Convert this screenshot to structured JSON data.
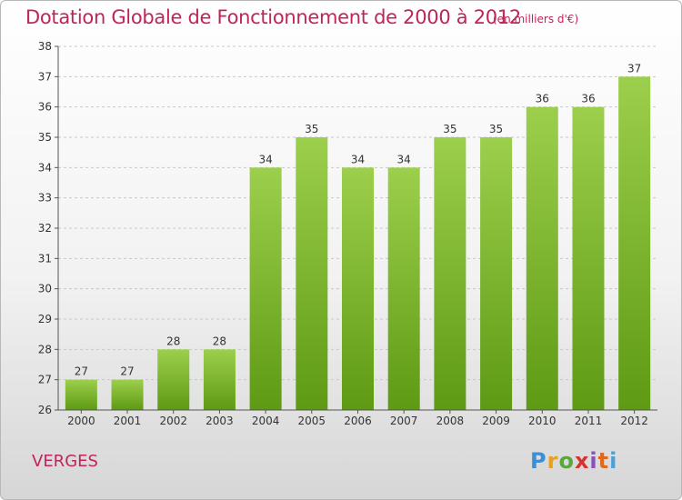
{
  "chart_data": {
    "type": "bar",
    "title": "Dotation Globale de Fonctionnement de 2000 à 2012",
    "unit_label": "(en milliers d'€)",
    "categories": [
      "2000",
      "2001",
      "2002",
      "2003",
      "2004",
      "2005",
      "2006",
      "2007",
      "2008",
      "2009",
      "2010",
      "2011",
      "2012"
    ],
    "values": [
      27,
      27,
      28,
      28,
      34,
      35,
      34,
      34,
      35,
      35,
      36,
      36,
      37
    ],
    "ylim": [
      26,
      38
    ],
    "yticks": [
      26,
      27,
      28,
      29,
      30,
      31,
      32,
      33,
      34,
      35,
      36,
      37,
      38
    ],
    "xlabel": "",
    "ylabel": "",
    "grid": true,
    "colors": {
      "bar_light": "#9ccf4c",
      "bar_dark": "#5e9a14",
      "grid": "#c8c8c8",
      "accent": "#c0245c"
    }
  },
  "commune": "VERGES",
  "logo": {
    "text": "Proxiti"
  }
}
